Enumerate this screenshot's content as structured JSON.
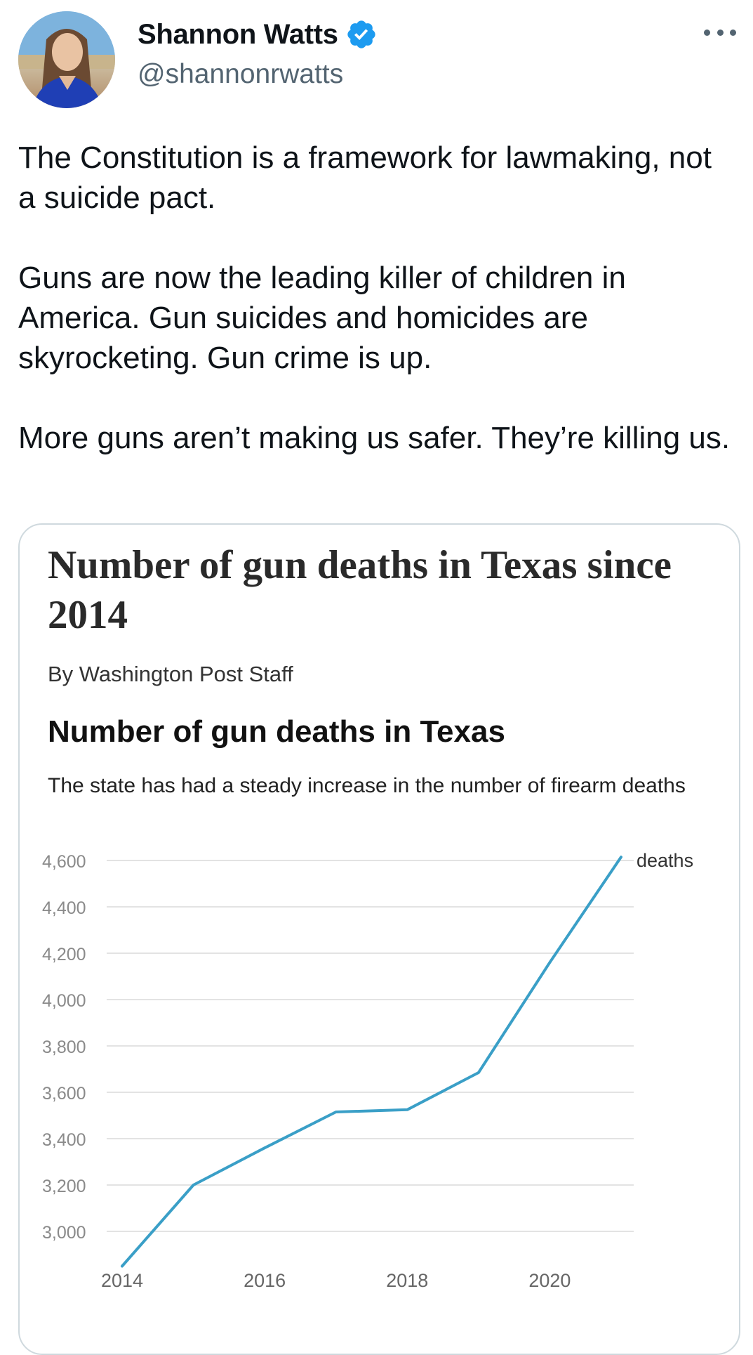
{
  "author": {
    "name": "Shannon Watts",
    "handle": "@shannonrwatts",
    "verified": true
  },
  "tweet": {
    "paragraphs": [
      "The Constitution is a framework for lawmaking, not a suicide pact.",
      "Guns are now the leading killer of children in America. Gun suicides and homicides are skyrocketing. Gun crime is up.",
      "More guns aren’t making us safer. They’re killing us."
    ]
  },
  "card": {
    "article_title": "Number of gun deaths in Texas since 2014",
    "byline": "By Washington Post Staff"
  },
  "colors": {
    "line": "#3a9fc7",
    "verified": "#1d9bf0"
  },
  "chart_data": {
    "type": "line",
    "title": "Number of gun deaths in Texas",
    "subtitle": "The state has had a steady increase in the number of firearm deaths",
    "xlabel": "",
    "ylabel": "",
    "x": [
      2014,
      2015,
      2016,
      2017,
      2018,
      2019,
      2020,
      2021
    ],
    "series": [
      {
        "name": "deaths",
        "values": [
          2850,
          3200,
          3360,
          3515,
          3525,
          3685,
          4160,
          4615
        ]
      }
    ],
    "xticks": [
      2014,
      2016,
      2018,
      2020
    ],
    "xtick_labels": [
      "2014",
      "2016",
      "2018",
      "2020"
    ],
    "yticks": [
      3000,
      3200,
      3400,
      3600,
      3800,
      4000,
      4200,
      4400,
      4600
    ],
    "ytick_labels": [
      "3,000",
      "3,200",
      "3,400",
      "3,600",
      "3,800",
      "4,000",
      "4,200",
      "4,400",
      "4,600"
    ],
    "xlim": [
      2014,
      2021
    ],
    "ylim": [
      3000,
      4600
    ],
    "grid": true,
    "legend": "end-of-line label"
  }
}
